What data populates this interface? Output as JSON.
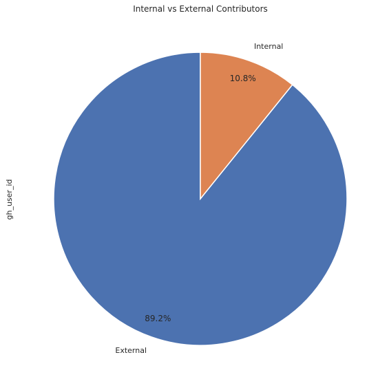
{
  "chart_data": {
    "type": "pie",
    "title": "Internal vs External Contributors",
    "ylabel": "gh_user_id",
    "start_angle": 90,
    "direction": "counterclockwise",
    "slices": [
      {
        "label": "External",
        "value": 89.2,
        "pct_label": "89.2%",
        "color": "#4c72b0"
      },
      {
        "label": "Internal",
        "value": 10.8,
        "pct_label": "10.8%",
        "color": "#dd8452"
      }
    ]
  }
}
